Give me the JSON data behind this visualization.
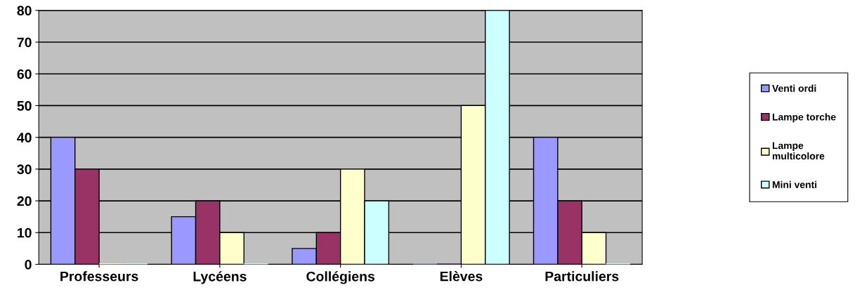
{
  "chart_data": {
    "type": "bar",
    "categories": [
      "Professeurs",
      "Lycéens",
      "Collégiens",
      "Elèves",
      "Particuliers"
    ],
    "series": [
      {
        "name": "Venti ordi",
        "color": "#9999ff",
        "values": [
          40,
          15,
          5,
          0,
          40
        ]
      },
      {
        "name": "Lampe torche",
        "color": "#993366",
        "values": [
          30,
          20,
          10,
          0,
          20
        ]
      },
      {
        "name": "Lampe multicolore",
        "color": "#ffffcc",
        "values": [
          0,
          10,
          30,
          50,
          10
        ]
      },
      {
        "name": "Mini venti",
        "color": "#ccffff",
        "values": [
          0,
          0,
          20,
          80,
          0
        ]
      }
    ],
    "ylim": [
      0,
      80
    ],
    "yticks": [
      0,
      10,
      20,
      30,
      40,
      50,
      60,
      70,
      80
    ],
    "grid": "y",
    "legend": "right"
  }
}
